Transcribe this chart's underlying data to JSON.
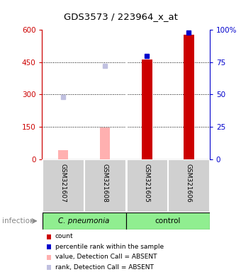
{
  "title": "GDS3573 / 223964_x_at",
  "samples": [
    "GSM321607",
    "GSM321608",
    "GSM321605",
    "GSM321606"
  ],
  "count_values": [
    null,
    null,
    462,
    578
  ],
  "count_absent_values": [
    40,
    148,
    null,
    null
  ],
  "percentile_values": [
    null,
    null,
    80,
    98
  ],
  "percentile_absent_values": [
    48,
    72,
    null,
    null
  ],
  "ylim_left": [
    0,
    600
  ],
  "ylim_right": [
    0,
    100
  ],
  "yticks_left": [
    0,
    150,
    300,
    450,
    600
  ],
  "yticks_right": [
    0,
    25,
    50,
    75,
    100
  ],
  "ytick_labels_right": [
    "0",
    "25",
    "50",
    "75",
    "100%"
  ],
  "left_axis_color": "#cc0000",
  "right_axis_color": "#0000cc",
  "bar_color_present": "#cc0000",
  "bar_color_absent": "#ffb0b0",
  "dot_color_present": "#0000cc",
  "dot_color_absent": "#c0c0e0",
  "group_label": "infection",
  "group1_label": "C. pneumonia",
  "group2_label": "control",
  "group1_bg": "#90ee90",
  "group2_bg": "#90ee90",
  "sample_bg": "#d0d0d0",
  "legend_items": [
    {
      "color": "#cc0000",
      "label": "count"
    },
    {
      "color": "#0000cc",
      "label": "percentile rank within the sample"
    },
    {
      "color": "#ffb0b0",
      "label": "value, Detection Call = ABSENT"
    },
    {
      "color": "#c0c0e0",
      "label": "rank, Detection Call = ABSENT"
    }
  ]
}
